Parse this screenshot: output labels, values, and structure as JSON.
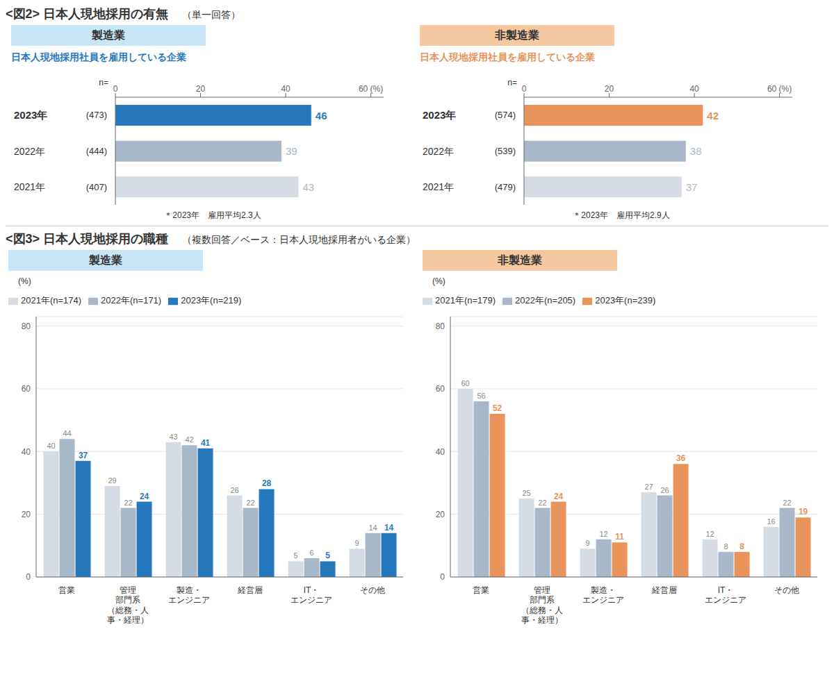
{
  "chart_data": [
    {
      "type": "bar",
      "orientation": "horizontal",
      "figure_title": "<図2> 日本人現地採用の有無",
      "figure_subtitle": "（単一回答）",
      "title": "製造業",
      "title_background": "#C8E6F5",
      "subtitle": "日本人現地採用社員を雇用している企業",
      "subtitle_color": "#2878BE",
      "annotation": "＊2023年　雇用平均2.3人",
      "categories": [
        "2023年",
        "2022年",
        "2021年"
      ],
      "n_header": "n=",
      "n": [
        "(473)",
        "(444)",
        "(407)"
      ],
      "values": [
        46,
        39,
        43
      ],
      "colors": [
        "#2878BE",
        "#A9B8C8",
        "#D5DCE4"
      ],
      "value_label_colors": [
        "#2878BE",
        "#A9B8C8",
        "#A9B8C8"
      ],
      "xlim": [
        0,
        63
      ],
      "xticks": [
        0,
        20,
        40,
        {
          "value": 60,
          "label": "60 (%)"
        }
      ],
      "data_labels": true,
      "grid": false
    },
    {
      "type": "bar",
      "orientation": "horizontal",
      "title": "非製造業",
      "title_background": "#F5C8A0",
      "subtitle": "日本人現地採用社員を雇用している企業",
      "subtitle_color": "#E8935A",
      "annotation": "＊2023年　雇用平均2.9人",
      "categories": [
        "2023年",
        "2022年",
        "2021年"
      ],
      "n_header": "n=",
      "n": [
        "(574)",
        "(539)",
        "(479)"
      ],
      "values": [
        42,
        38,
        37
      ],
      "colors": [
        "#E8935A",
        "#A9B8C8",
        "#D5DCE4"
      ],
      "value_label_colors": [
        "#E8935A",
        "#A9B8C8",
        "#A9B8C8"
      ],
      "xlim": [
        0,
        63
      ],
      "xticks": [
        0,
        20,
        40,
        {
          "value": 60,
          "label": "60 (%)"
        }
      ],
      "data_labels": true,
      "grid": false
    },
    {
      "type": "bar",
      "figure_title": "<図3> 日本人現地採用の職種",
      "figure_subtitle": "（複数回答／ベース：日本人現地採用者がいる企業）",
      "title": "製造業",
      "title_background": "#C8E6F5",
      "categories": [
        "営業",
        "管理\n部門系\n（総務・人\n事・経理）",
        "製造・\nエンジニア",
        "経営層",
        "IT・\nエンジニア",
        "その他"
      ],
      "series": [
        {
          "name": "2021年(n=174)",
          "color": "#D5DCE4",
          "label_color": "#888888",
          "values": [
            40,
            29,
            43,
            26,
            5,
            9
          ]
        },
        {
          "name": "2022年(n=171)",
          "color": "#A9B8C8",
          "label_color": "#888888",
          "values": [
            44,
            22,
            42,
            22,
            6,
            14
          ]
        },
        {
          "name": "2023年(n=219)",
          "color": "#2878BE",
          "label_color": "#2878BE",
          "values": [
            37,
            24,
            41,
            28,
            5,
            14
          ]
        }
      ],
      "ylim": [
        0,
        83
      ],
      "yticks": [
        0,
        20,
        40,
        60,
        80
      ],
      "y_label": "(%)",
      "grid": true,
      "data_labels": true,
      "legend": "top left"
    },
    {
      "type": "bar",
      "title": "非製造業",
      "title_background": "#F5C8A0",
      "categories": [
        "営業",
        "管理\n部門系\n（総務・人\n事・経理）",
        "製造・\nエンジニア",
        "経営層",
        "IT・\nエンジニア",
        "その他"
      ],
      "series": [
        {
          "name": "2021年(n=179)",
          "color": "#D5DCE4",
          "label_color": "#888888",
          "values": [
            60,
            25,
            9,
            27,
            12,
            16
          ]
        },
        {
          "name": "2022年(n=205)",
          "color": "#A9B8C8",
          "label_color": "#888888",
          "values": [
            56,
            22,
            12,
            26,
            8,
            22
          ]
        },
        {
          "name": "2023年(n=239)",
          "color": "#E8935A",
          "label_color": "#E8935A",
          "values": [
            52,
            24,
            11,
            36,
            8,
            19
          ]
        }
      ],
      "ylim": [
        0,
        83
      ],
      "yticks": [
        0,
        20,
        40,
        60,
        80
      ],
      "y_label": "(%)",
      "grid": true,
      "data_labels": true,
      "legend": "top left"
    }
  ]
}
